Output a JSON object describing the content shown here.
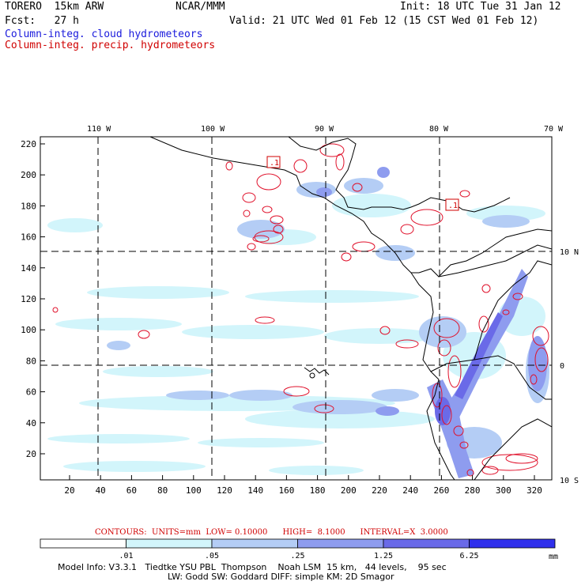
{
  "header": {
    "model": "TORERO  15km ARW",
    "org": "NCAR/MMM",
    "init": "Init: 18 UTC Tue 31 Jan 12",
    "fcst": "Fcst:   27 h",
    "valid": "Valid: 21 UTC Wed 01 Feb 12 (15 CST Wed 01 Feb 12)",
    "field1": "Column-integ. cloud hydrometeors",
    "field2": "Column-integ. precip. hydrometeors"
  },
  "colors": {
    "field1": "#1a1adc",
    "field2": "#d00000",
    "contour": "#e0102a"
  },
  "map": {
    "lon_labels": [
      "110 W",
      "100 W",
      "90 W",
      "80 W",
      "70 W"
    ],
    "lat_labels": [
      "10 N",
      "0",
      "10 S"
    ],
    "x_ticks": [
      "20",
      "40",
      "60",
      "80",
      "100",
      "120",
      "140",
      "160",
      "180",
      "200",
      "220",
      "240",
      "260",
      "280",
      "300",
      "320"
    ],
    "y_ticks": [
      "220",
      "200",
      "180",
      "160",
      "140",
      "120",
      "100",
      "80",
      "60",
      "40",
      "20"
    ],
    "box_labels": [
      ".1",
      ".1"
    ]
  },
  "contour_info": {
    "text": "CONTOURS:  UNITS=mm  LOW= 0.10000      HIGH=  8.1000      INTERVAL=X  3.0000"
  },
  "colorbar": {
    "labels": [
      ".01",
      ".05",
      ".25",
      "1.25",
      "6.25"
    ],
    "unit": "mm",
    "colors": [
      "#ffffff",
      "#d2f5fb",
      "#b4cdf5",
      "#8e9cef",
      "#6a6ae8",
      "#3030ec"
    ]
  },
  "footer": {
    "line1": "Model Info: V3.3.1   Tiedtke YSU PBL  Thompson    Noah LSM  15 km,   44 levels,    95 sec",
    "line2": "LW: Godd SW: Goddard DIFF: simple KM: 2D Smagor"
  }
}
